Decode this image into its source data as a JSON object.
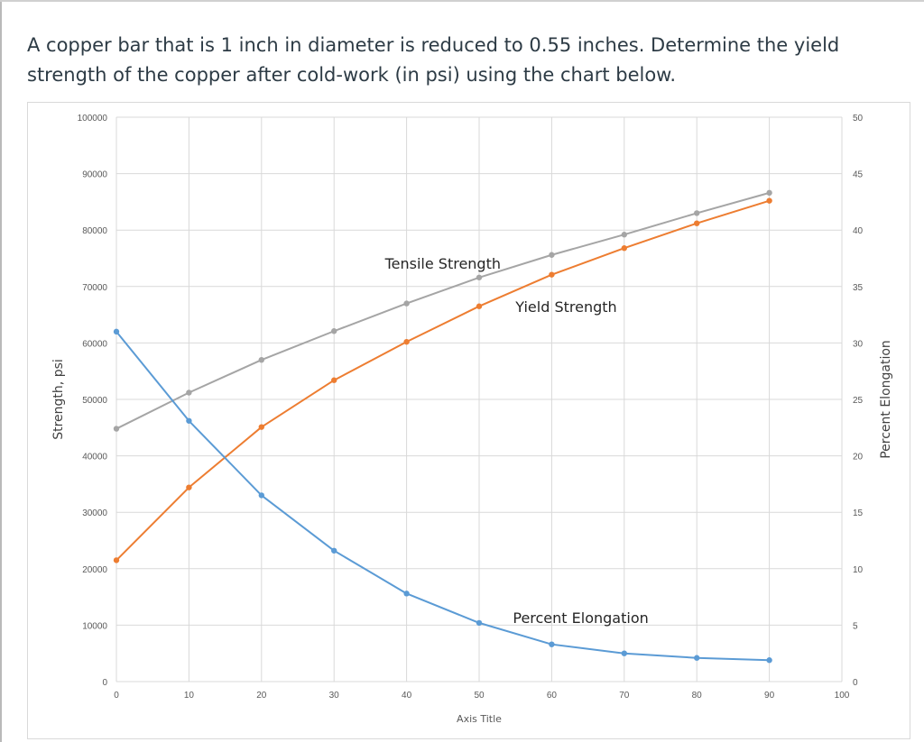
{
  "question": {
    "text": "A copper bar that is 1 inch in diameter is reduced to 0.55 inches.  Determine the yield strength of the copper after cold-work (in psi) using the chart below."
  },
  "colors": {
    "tensile": "#a5a5a5",
    "yield": "#ed7d31",
    "elongation": "#5b9bd5",
    "grid": "#d9d9d9"
  },
  "chart_data": {
    "type": "line",
    "title": "",
    "xlabel": "Axis Title",
    "ylabel": "Strength, psi",
    "y2label": "Percent Elongation",
    "xlim": [
      0,
      100
    ],
    "ylim": [
      0,
      100000
    ],
    "y2lim": [
      0,
      50
    ],
    "x_ticks": [
      "0",
      "10",
      "20",
      "30",
      "40",
      "50",
      "60",
      "70",
      "80",
      "90",
      "100"
    ],
    "y_ticks": [
      "0",
      "10000",
      "20000",
      "30000",
      "40000",
      "50000",
      "60000",
      "70000",
      "80000",
      "90000",
      "100000"
    ],
    "y2_ticks": [
      "0",
      "5",
      "10",
      "15",
      "20",
      "25",
      "30",
      "35",
      "40",
      "45",
      "50"
    ],
    "x": [
      0,
      10,
      20,
      30,
      40,
      50,
      60,
      70,
      80,
      90
    ],
    "series": [
      {
        "name": "Tensile Strength",
        "axis": "left",
        "color": "#a5a5a5",
        "values": [
          44800,
          51200,
          57000,
          62100,
          67000,
          71600,
          75600,
          79200,
          83000,
          86600
        ]
      },
      {
        "name": "Yield Strength",
        "axis": "left",
        "color": "#ed7d31",
        "values": [
          21500,
          34400,
          45100,
          53400,
          60200,
          66500,
          72100,
          76800,
          81200,
          85200
        ]
      },
      {
        "name": "Percent Elongation",
        "axis": "right",
        "color": "#5b9bd5",
        "values": [
          31,
          23.1,
          16.5,
          11.6,
          7.8,
          5.2,
          3.3,
          2.5,
          2.1,
          1.9
        ]
      }
    ],
    "annotations": [
      {
        "text": "Tensile Strength",
        "x": 45,
        "y": 73200
      },
      {
        "text": "Yield Strength",
        "x": 62,
        "y": 65500
      },
      {
        "text": "Percent Elongation",
        "x": 64,
        "y": 10400
      }
    ]
  }
}
